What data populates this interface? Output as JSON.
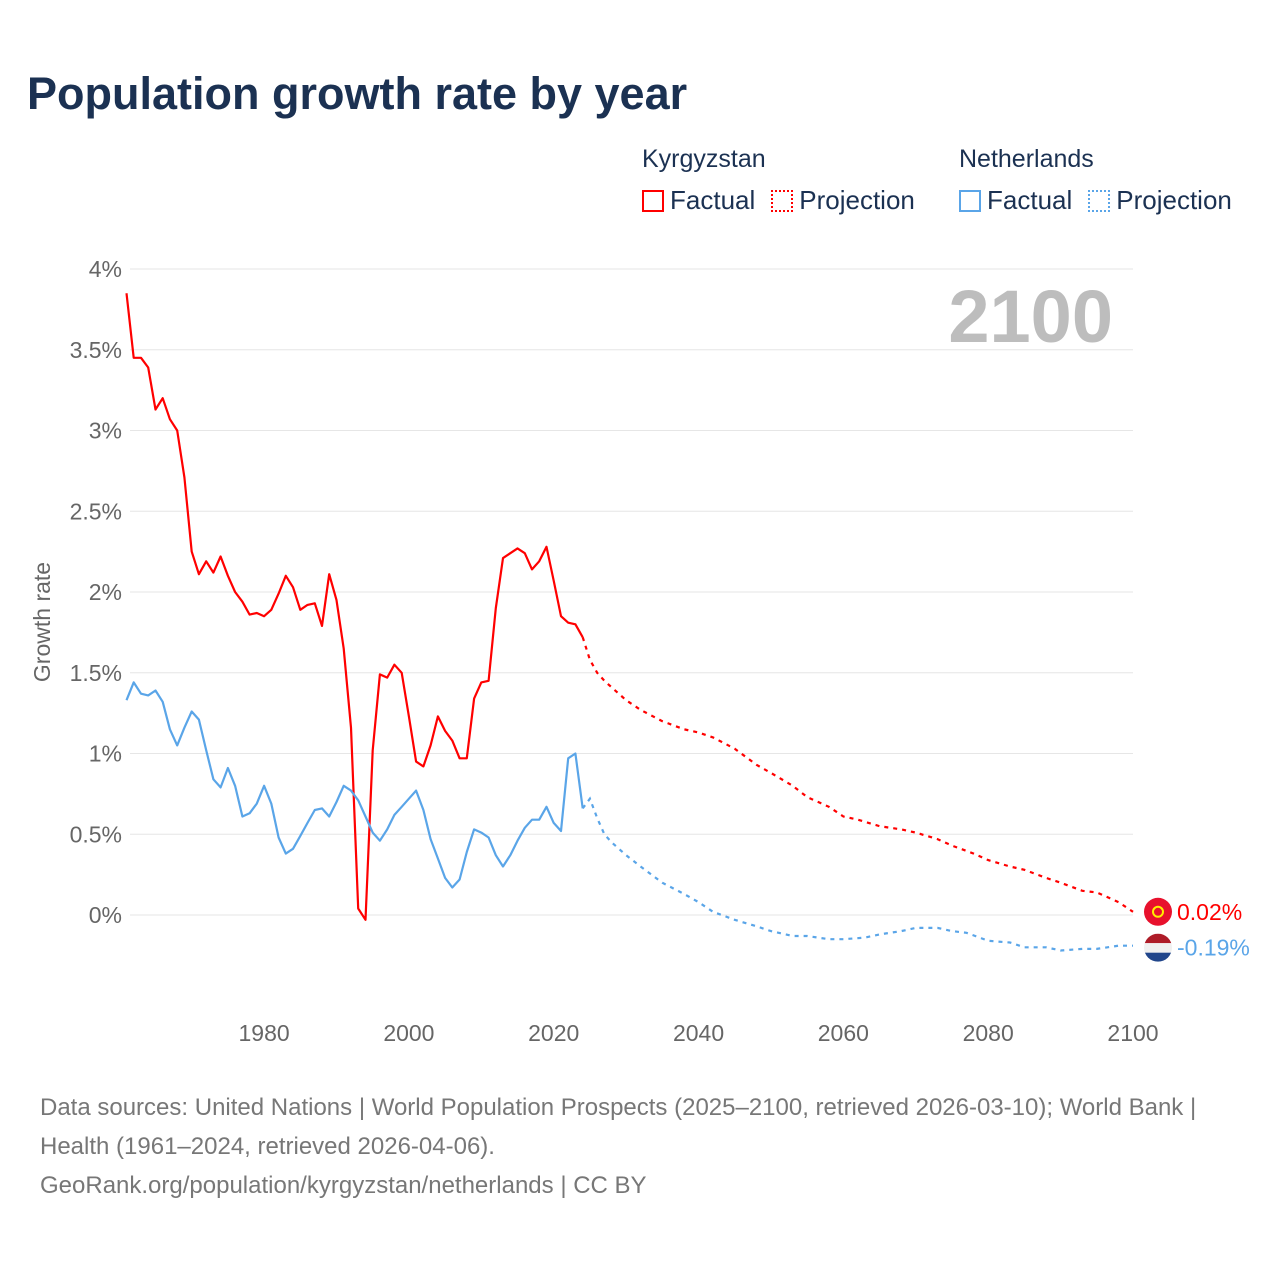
{
  "chart_data": {
    "type": "line",
    "title": "Population growth rate by year",
    "ylabel": "Growth rate",
    "xlabel": "",
    "xlim": [
      1961,
      2100
    ],
    "ylim": [
      -0.6,
      4
    ],
    "x_ticks": [
      1980,
      2000,
      2020,
      2040,
      2060,
      2080,
      2100
    ],
    "x_tick_labels": [
      "1980",
      "2000",
      "2020",
      "2040",
      "2060",
      "2080",
      "2100"
    ],
    "y_ticks": [
      0,
      0.5,
      1,
      1.5,
      2,
      2.5,
      3,
      3.5,
      4
    ],
    "y_tick_labels": [
      "0%",
      "0.5%",
      "1%",
      "1.5%",
      "2%",
      "2.5%",
      "3%",
      "3.5%",
      "4%"
    ],
    "grid": true,
    "year_overlay": "2100",
    "legend_placement": "top-right",
    "legend": {
      "groups": [
        {
          "name": "Kyrgyzstan",
          "factual": "Factual",
          "projection": "Projection"
        },
        {
          "name": "Netherlands",
          "factual": "Factual",
          "projection": "Projection"
        }
      ]
    },
    "series": [
      {
        "name": "Kyrgyzstan",
        "color": "#ff0000",
        "end_label": "0.02%",
        "factual": {
          "x": [
            1961,
            1962,
            1963,
            1964,
            1965,
            1966,
            1967,
            1968,
            1969,
            1970,
            1971,
            1972,
            1973,
            1974,
            1975,
            1976,
            1977,
            1978,
            1979,
            1980,
            1981,
            1982,
            1983,
            1984,
            1985,
            1986,
            1987,
            1988,
            1989,
            1990,
            1991,
            1992,
            1993,
            1994,
            1995,
            1996,
            1997,
            1998,
            1999,
            2000,
            2001,
            2002,
            2003,
            2004,
            2005,
            2006,
            2007,
            2008,
            2009,
            2010,
            2011,
            2012,
            2013,
            2014,
            2015,
            2016,
            2017,
            2018,
            2019,
            2020,
            2021,
            2022,
            2023,
            2024
          ],
          "y": [
            3.85,
            3.45,
            3.45,
            3.39,
            3.13,
            3.2,
            3.07,
            3.0,
            2.71,
            2.25,
            2.11,
            2.19,
            2.12,
            2.22,
            2.1,
            2.0,
            1.94,
            1.86,
            1.87,
            1.85,
            1.89,
            1.99,
            2.1,
            2.03,
            1.89,
            1.92,
            1.93,
            1.79,
            2.11,
            1.95,
            1.65,
            1.16,
            0.04,
            -0.03,
            1.02,
            1.49,
            1.47,
            1.55,
            1.5,
            1.23,
            0.95,
            0.92,
            1.05,
            1.23,
            1.14,
            1.08,
            0.97,
            0.97,
            1.34,
            1.44,
            1.45,
            1.9,
            2.21,
            2.24,
            2.27,
            2.24,
            2.14,
            2.19,
            2.28,
            2.07,
            1.85,
            1.81,
            1.8,
            1.72
          ]
        },
        "projection": {
          "x": [
            2024,
            2025,
            2026,
            2027,
            2028,
            2030,
            2032,
            2035,
            2038,
            2040,
            2042,
            2045,
            2048,
            2050,
            2053,
            2055,
            2058,
            2060,
            2062,
            2065,
            2068,
            2070,
            2073,
            2075,
            2078,
            2080,
            2083,
            2085,
            2088,
            2090,
            2093,
            2095,
            2098,
            2100
          ],
          "y": [
            1.72,
            1.58,
            1.5,
            1.45,
            1.41,
            1.33,
            1.27,
            1.2,
            1.15,
            1.13,
            1.1,
            1.03,
            0.93,
            0.88,
            0.8,
            0.73,
            0.67,
            0.61,
            0.59,
            0.55,
            0.53,
            0.51,
            0.47,
            0.43,
            0.38,
            0.34,
            0.3,
            0.28,
            0.23,
            0.2,
            0.15,
            0.14,
            0.08,
            0.02
          ]
        }
      },
      {
        "name": "Netherlands",
        "color": "#5aa5e8",
        "end_label": "-0.19%",
        "factual": {
          "x": [
            1961,
            1962,
            1963,
            1964,
            1965,
            1966,
            1967,
            1968,
            1969,
            1970,
            1971,
            1972,
            1973,
            1974,
            1975,
            1976,
            1977,
            1978,
            1979,
            1980,
            1981,
            1982,
            1983,
            1984,
            1985,
            1986,
            1987,
            1988,
            1989,
            1990,
            1991,
            1992,
            1993,
            1994,
            1995,
            1996,
            1997,
            1998,
            1999,
            2000,
            2001,
            2002,
            2003,
            2004,
            2005,
            2006,
            2007,
            2008,
            2009,
            2010,
            2011,
            2012,
            2013,
            2014,
            2015,
            2016,
            2017,
            2018,
            2019,
            2020,
            2021,
            2022,
            2023,
            2024
          ],
          "y": [
            1.33,
            1.44,
            1.37,
            1.36,
            1.39,
            1.32,
            1.15,
            1.05,
            1.16,
            1.26,
            1.21,
            1.02,
            0.84,
            0.79,
            0.91,
            0.8,
            0.61,
            0.63,
            0.69,
            0.8,
            0.69,
            0.48,
            0.38,
            0.41,
            0.49,
            0.57,
            0.65,
            0.66,
            0.61,
            0.7,
            0.8,
            0.77,
            0.71,
            0.61,
            0.51,
            0.46,
            0.53,
            0.62,
            0.67,
            0.72,
            0.77,
            0.65,
            0.47,
            0.35,
            0.23,
            0.17,
            0.22,
            0.39,
            0.53,
            0.51,
            0.48,
            0.37,
            0.3,
            0.37,
            0.46,
            0.54,
            0.59,
            0.59,
            0.67,
            0.57,
            0.52,
            0.97,
            1.0,
            0.66
          ]
        },
        "projection": {
          "x": [
            2024,
            2025,
            2026,
            2027,
            2028,
            2030,
            2032,
            2035,
            2038,
            2040,
            2042,
            2045,
            2048,
            2050,
            2053,
            2055,
            2058,
            2060,
            2063,
            2065,
            2068,
            2070,
            2073,
            2075,
            2077,
            2080,
            2083,
            2085,
            2088,
            2090,
            2093,
            2095,
            2098,
            2100
          ],
          "y": [
            0.66,
            0.72,
            0.6,
            0.5,
            0.45,
            0.37,
            0.3,
            0.2,
            0.13,
            0.08,
            0.02,
            -0.03,
            -0.07,
            -0.1,
            -0.13,
            -0.13,
            -0.15,
            -0.15,
            -0.14,
            -0.12,
            -0.1,
            -0.08,
            -0.08,
            -0.1,
            -0.11,
            -0.16,
            -0.17,
            -0.2,
            -0.2,
            -0.22,
            -0.21,
            -0.21,
            -0.19,
            -0.19
          ]
        }
      }
    ]
  },
  "footer": {
    "sources": "Data sources: United Nations | World Population Prospects (2025–2100, retrieved 2026-03-10); World Bank | Health (1961–2024, retrieved 2026-04-06).",
    "attribution": "GeoRank.org/population/kyrgyzstan/netherlands | CC BY"
  }
}
